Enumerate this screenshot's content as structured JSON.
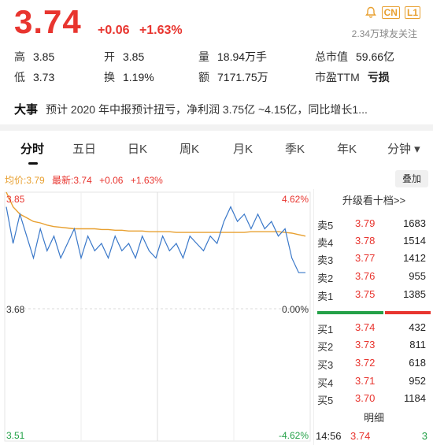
{
  "quote": {
    "price": "3.74",
    "change": "+0.06",
    "change_pct": "+1.63%",
    "followers": "2.34万球友关注",
    "badges": [
      "CN",
      "L1"
    ],
    "bell_icon": "bell-icon",
    "up_color": "#e8352f",
    "down_color": "#24a148"
  },
  "stats": {
    "high_label": "高",
    "high": "3.85",
    "open_label": "开",
    "open": "3.85",
    "volume_label": "量",
    "volume": "18.94万手",
    "mcap_label": "总市值",
    "mcap": "59.66亿",
    "low_label": "低",
    "low": "3.73",
    "turnover_label": "换",
    "turnover": "1.19%",
    "amount_label": "额",
    "amount": "7171.75万",
    "pe_label": "市盈TTM",
    "pe": "亏损"
  },
  "news": {
    "label": "大事",
    "text": "预计 2020 年中报预计扭亏，净利润 3.75亿 ~4.15亿，同比增长1..."
  },
  "tabs": [
    {
      "label": "分时",
      "active": true
    },
    {
      "label": "五日"
    },
    {
      "label": "日K"
    },
    {
      "label": "周K"
    },
    {
      "label": "月K"
    },
    {
      "label": "季K"
    },
    {
      "label": "年K"
    },
    {
      "label": "分钟 ▾"
    }
  ],
  "legend": {
    "avg": "均价:3.79",
    "latest": "最新:3.74",
    "change": "+0.06",
    "change_pct": "+1.63%",
    "overlay_button": "叠加"
  },
  "chart_data": {
    "type": "line",
    "y_labels_left": [
      "3.85",
      "3.68",
      "3.51"
    ],
    "y_labels_right": [
      "4.62%",
      "0.00%",
      "-4.62%"
    ],
    "ylim": [
      3.51,
      3.85
    ],
    "prev_close": 3.68,
    "series": [
      {
        "color": "#e8a030",
        "values": [
          3.85,
          3.83,
          3.82,
          3.815,
          3.81,
          3.808,
          3.805,
          3.803,
          3.802,
          3.801,
          3.8,
          3.8,
          3.8,
          3.8,
          3.799,
          3.799,
          3.798,
          3.798,
          3.797,
          3.797,
          3.797,
          3.796,
          3.796,
          3.796,
          3.796,
          3.795,
          3.795,
          3.795,
          3.795,
          3.795,
          3.795,
          3.795,
          3.795,
          3.795,
          3.795,
          3.795,
          3.796,
          3.796,
          3.796,
          3.796,
          3.796,
          3.795,
          3.794,
          3.792,
          3.79
        ]
      },
      {
        "color": "#3a78c9",
        "values": [
          3.83,
          3.78,
          3.82,
          3.79,
          3.76,
          3.8,
          3.77,
          3.79,
          3.76,
          3.78,
          3.8,
          3.76,
          3.79,
          3.77,
          3.78,
          3.76,
          3.79,
          3.77,
          3.78,
          3.76,
          3.79,
          3.77,
          3.76,
          3.79,
          3.77,
          3.78,
          3.76,
          3.79,
          3.78,
          3.77,
          3.79,
          3.78,
          3.81,
          3.83,
          3.81,
          3.82,
          3.8,
          3.82,
          3.8,
          3.81,
          3.79,
          3.8,
          3.76,
          3.74,
          3.74
        ]
      }
    ]
  },
  "book": {
    "upgrade_label": "升级看十档>>",
    "asks": [
      {
        "label": "卖5",
        "price": "3.79",
        "vol": "1683"
      },
      {
        "label": "卖4",
        "price": "3.78",
        "vol": "1514"
      },
      {
        "label": "卖3",
        "price": "3.77",
        "vol": "1412"
      },
      {
        "label": "卖2",
        "price": "3.76",
        "vol": "955"
      },
      {
        "label": "卖1",
        "price": "3.75",
        "vol": "1385"
      }
    ],
    "bids": [
      {
        "label": "买1",
        "price": "3.74",
        "vol": "432"
      },
      {
        "label": "买2",
        "price": "3.73",
        "vol": "811"
      },
      {
        "label": "买3",
        "price": "3.72",
        "vol": "618"
      },
      {
        "label": "买4",
        "price": "3.71",
        "vol": "952"
      },
      {
        "label": "买5",
        "price": "3.70",
        "vol": "1184"
      }
    ],
    "detail_label": "明细",
    "tick": {
      "time": "14:56",
      "price": "3.74",
      "qty": "3"
    }
  }
}
